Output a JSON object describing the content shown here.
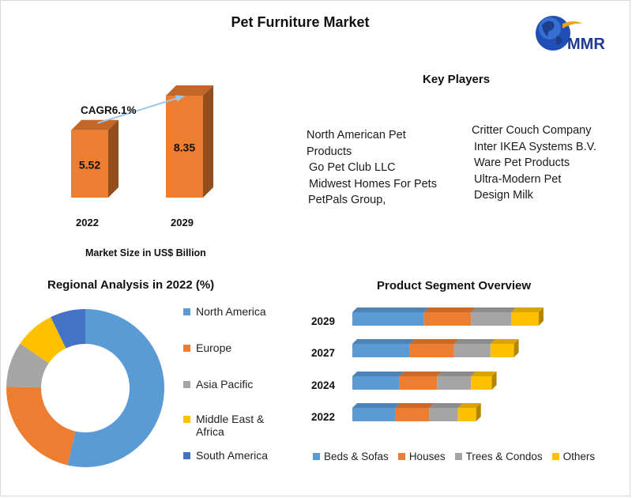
{
  "title": "Pet Furniture Market",
  "logo": {
    "text": "MMR",
    "icon": "globe-icon"
  },
  "key_players": {
    "heading": "Key Players",
    "left": [
      "North American Pet",
      "Products",
      "Go Pet Club LLC",
      "Midwest Homes For Pets",
      "PetPals Group,"
    ],
    "right": [
      "Critter Couch Company",
      "Inter IKEA Systems B.V.",
      "Ware Pet Products",
      "Ultra-Modern Pet",
      "Design Milk"
    ]
  },
  "colors": {
    "orange": "#ED7D31",
    "blue": "#5B9BD5",
    "gray": "#A5A5A5",
    "yellow": "#FFC000",
    "darkblue": "#4472C4",
    "arrow": "#9DC3E6"
  },
  "chart_data": [
    {
      "type": "bar",
      "categories": [
        "2022",
        "2029"
      ],
      "values": [
        5.52,
        8.35
      ],
      "value_labels": [
        "5.52",
        "8.35"
      ],
      "annotation": "CAGR6.1%",
      "xlabel": "Market Size in US$ Billion"
    },
    {
      "type": "pie",
      "title": "Regional Analysis in 2022 (%)",
      "labels": [
        "North America",
        "Europe",
        "Asia Pacific",
        "Middle East & Africa",
        "South America"
      ],
      "legend_lines": [
        [
          "North America"
        ],
        [
          "Europe"
        ],
        [
          "Asia Pacific"
        ],
        [
          "Middle East &",
          "Africa"
        ],
        [
          "South America"
        ]
      ],
      "values": [
        52,
        21,
        9,
        8,
        7
      ],
      "donut": true,
      "legend_position": "right"
    },
    {
      "type": "bar",
      "orientation": "horizontal",
      "stacked": true,
      "title": "Product Segment Overview",
      "categories": [
        "2029",
        "2027",
        "2024",
        "2022"
      ],
      "series": [
        {
          "name": "Beds & Sofas",
          "values": [
            5.5,
            4.4,
            3.6,
            3.3
          ]
        },
        {
          "name": "Houses",
          "values": [
            3.6,
            3.4,
            2.9,
            2.6
          ]
        },
        {
          "name": "Trees & Condos",
          "values": [
            3.1,
            2.8,
            2.6,
            2.2
          ]
        },
        {
          "name": "Others",
          "values": [
            2.1,
            1.8,
            1.6,
            1.4
          ]
        }
      ],
      "legend_position": "bottom"
    }
  ]
}
